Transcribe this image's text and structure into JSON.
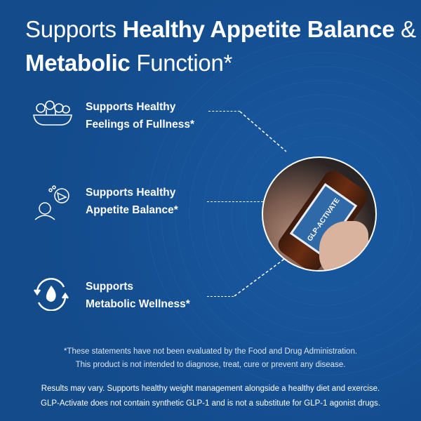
{
  "headline": {
    "part1": "Supports ",
    "bold1": "Healthy Appetite Balance",
    "part2": " & ",
    "bold2": "Metabolic",
    "part3": " Function*"
  },
  "features": [
    {
      "line1": "Supports Healthy",
      "line2": "Feelings of Fullness*",
      "icon": "salad-bowl-icon"
    },
    {
      "line1": "Supports Healthy",
      "line2": "Appetite Balance*",
      "icon": "thinking-of-food-icon"
    },
    {
      "line1": "Supports",
      "line2": "Metabolic Wellness*",
      "icon": "flame-cycle-icon"
    }
  ],
  "product": {
    "label": "GLP-ACTIVATE"
  },
  "disclaimer": {
    "line1": "*These statements have not been evaluated by the Food and Drug Administration.",
    "line2": "This product is not intended to diagnose, treat, cure or prevent any disease."
  },
  "notes": {
    "line1": "Results may vary. Supports healthy weight management alongside a healthy diet and exercise.",
    "line2": "GLP-Activate does not contain synthetic GLP-1 and is not a substitute for GLP-1 agonist drugs."
  },
  "colors": {
    "background": "#16508f",
    "text": "#ffffff"
  }
}
